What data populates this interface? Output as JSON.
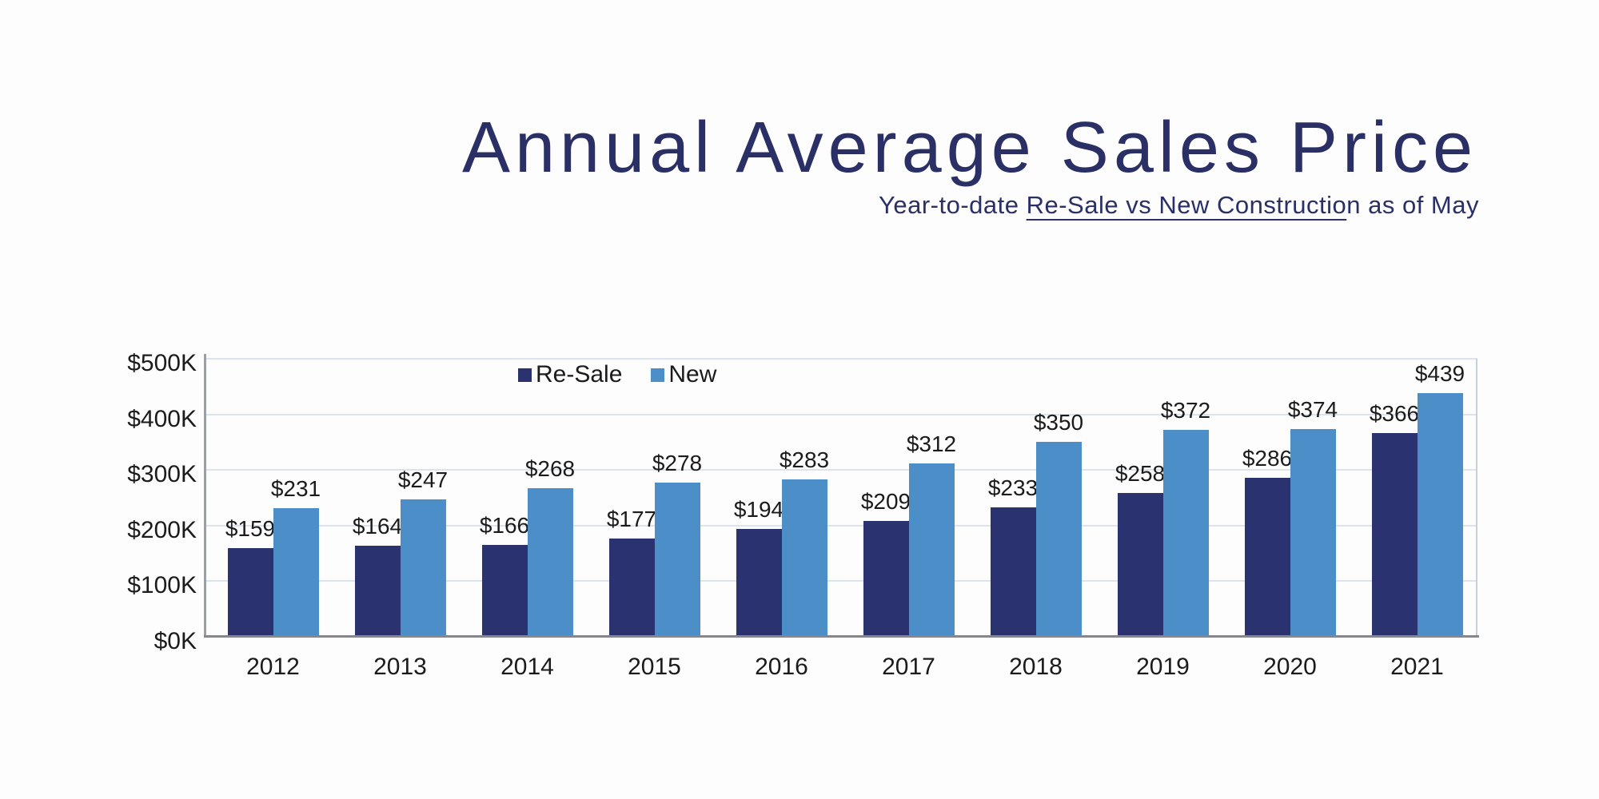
{
  "header": {
    "title": "Annual Average Sales Price",
    "subtitle": {
      "pre": "Year-to-date ",
      "underlined": "Re-Sale vs New Constructio",
      "post": "n as of May",
      "full": "Year-to-date Re-Sale vs New Construction as of May"
    }
  },
  "colors": {
    "page_bg": "#fdfdfd",
    "title": "#2a3065",
    "text": "#1b1b1b",
    "grid": "#dde3ee",
    "axis_y": "#9ba0a8",
    "axis_x": "#84878d",
    "plot_right_border": "#c9ced7",
    "resale_bar": "#2b3270",
    "new_bar": "#4c8ec8"
  },
  "chart_data": {
    "type": "bar",
    "title": "Annual Average Sales Price",
    "subtitle": "Year-to-date Re-Sale vs New Construction as of May",
    "categories": [
      "2012",
      "2013",
      "2014",
      "2015",
      "2016",
      "2017",
      "2018",
      "2019",
      "2020",
      "2021"
    ],
    "series": [
      {
        "name": "Re-Sale",
        "color": "#2b3270",
        "values": [
          159,
          164,
          166,
          177,
          194,
          209,
          233,
          258,
          286,
          366
        ],
        "labels": [
          "$159",
          "$164",
          "$166",
          "$177",
          "$194",
          "$209",
          "$233",
          "$258",
          "$286",
          "$366"
        ]
      },
      {
        "name": "New",
        "color": "#4c8ec8",
        "values": [
          231,
          247,
          268,
          278,
          283,
          312,
          350,
          372,
          374,
          439
        ],
        "labels": [
          "$231",
          "$247",
          "$268",
          "$278",
          "$283",
          "$312",
          "$350",
          "$372",
          "$374",
          "$439"
        ]
      }
    ],
    "xlabel": "",
    "ylabel": "",
    "y_axis": {
      "min": 0,
      "max": 500,
      "tick_step": 100,
      "ticks": [
        "$0K",
        "$100K",
        "$200K",
        "$300K",
        "$400K",
        "$500K"
      ],
      "unit": "thousands of dollars"
    },
    "grid": true,
    "legend_position": "top-inside-left-of-center",
    "bar_labels_position": "above-bar"
  }
}
